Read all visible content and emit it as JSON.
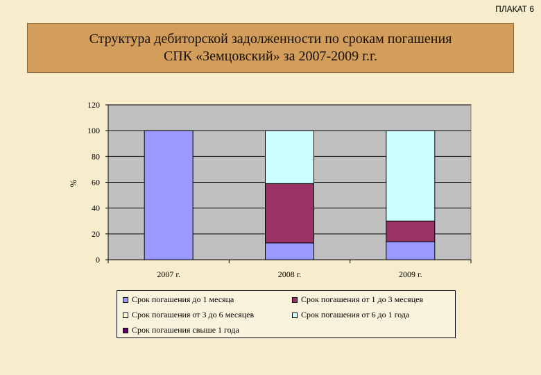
{
  "poster_label": "ПЛАКАТ 6",
  "title_line1": "Структура дебиторской задолженности по срокам погашения",
  "title_line2": "СПК «Земцовский» за 2007-2009 г.г.",
  "chart_data": {
    "type": "bar",
    "stacked": true,
    "ylabel": "%",
    "ylim": [
      0,
      120
    ],
    "yticks": [
      0,
      20,
      40,
      60,
      80,
      100,
      120
    ],
    "grid": true,
    "legend_position": "bottom",
    "categories": [
      "2007 г.",
      "2008 г.",
      "2009 г."
    ],
    "series": [
      {
        "name": "Срок погашения до 1 месяца",
        "color": "#9999ff",
        "values": [
          100,
          13,
          14
        ]
      },
      {
        "name": "Срок погашения от 1 до 3 месяцев",
        "color": "#993366",
        "values": [
          0,
          46,
          16
        ]
      },
      {
        "name": "Срок погашения от 3 до 6 месяцев",
        "color": "#ffffcc",
        "values": [
          0,
          0,
          0
        ]
      },
      {
        "name": "Срок погашения от 6 до 1 года",
        "color": "#ccffff",
        "values": [
          0,
          41,
          70
        ]
      },
      {
        "name": "Срок погашения свыше 1 года",
        "color": "#660066",
        "values": [
          0,
          0,
          0
        ]
      }
    ]
  }
}
